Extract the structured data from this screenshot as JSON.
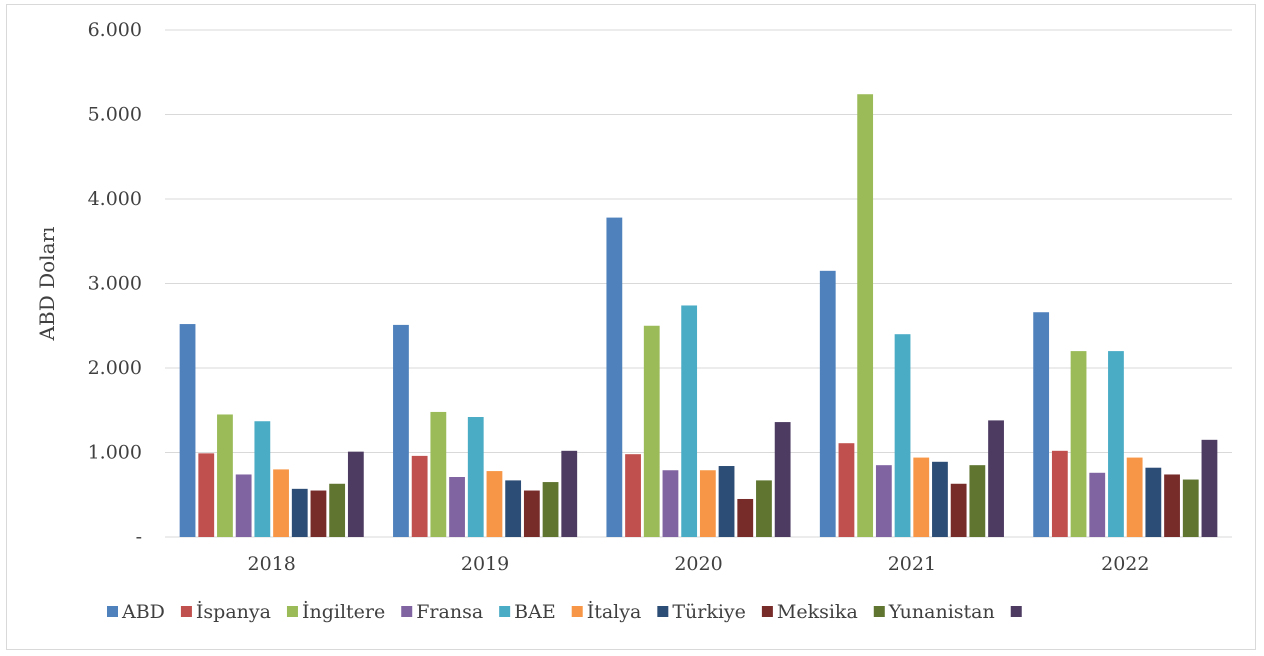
{
  "chart_data": {
    "type": "bar",
    "title": "",
    "xlabel": "",
    "ylabel": "ABD Doları",
    "ylim": [
      0,
      6000
    ],
    "yticks": [
      {
        "value": 0,
        "label": "-"
      },
      {
        "value": 1000,
        "label": "1.000"
      },
      {
        "value": 2000,
        "label": "2.000"
      },
      {
        "value": 3000,
        "label": "3.000"
      },
      {
        "value": 4000,
        "label": "4.000"
      },
      {
        "value": 5000,
        "label": "5.000"
      },
      {
        "value": 6000,
        "label": "6.000"
      }
    ],
    "grid": "horizontal",
    "legend_position": "bottom",
    "categories": [
      "2018",
      "2019",
      "2020",
      "2021",
      "2022"
    ],
    "series": [
      {
        "name": "ABD",
        "color": "#4F81BD",
        "values": [
          2520,
          2510,
          3780,
          3150,
          2660
        ]
      },
      {
        "name": "İspanya",
        "color": "#C0504D",
        "values": [
          990,
          960,
          980,
          1110,
          1020
        ]
      },
      {
        "name": "İngiltere",
        "color": "#9BBB59",
        "values": [
          1450,
          1480,
          2500,
          5240,
          2200
        ]
      },
      {
        "name": "Fransa",
        "color": "#8064A2",
        "values": [
          740,
          710,
          790,
          850,
          760
        ]
      },
      {
        "name": "BAE",
        "color": "#4BACC6",
        "values": [
          1370,
          1420,
          2740,
          2400,
          2200
        ]
      },
      {
        "name": "İtalya",
        "color": "#F79646",
        "values": [
          800,
          780,
          790,
          940,
          940
        ]
      },
      {
        "name": "Türkiye",
        "color": "#2C4D75",
        "values": [
          570,
          670,
          840,
          890,
          820
        ]
      },
      {
        "name": "Meksika",
        "color": "#772C2A",
        "values": [
          550,
          550,
          450,
          630,
          740
        ]
      },
      {
        "name": "Yunanistan",
        "color": "#5F7530",
        "values": [
          630,
          650,
          670,
          850,
          680
        ]
      },
      {
        "name": "",
        "color": "#4D3B62",
        "values": [
          1010,
          1020,
          1360,
          1380,
          1150
        ]
      }
    ]
  }
}
